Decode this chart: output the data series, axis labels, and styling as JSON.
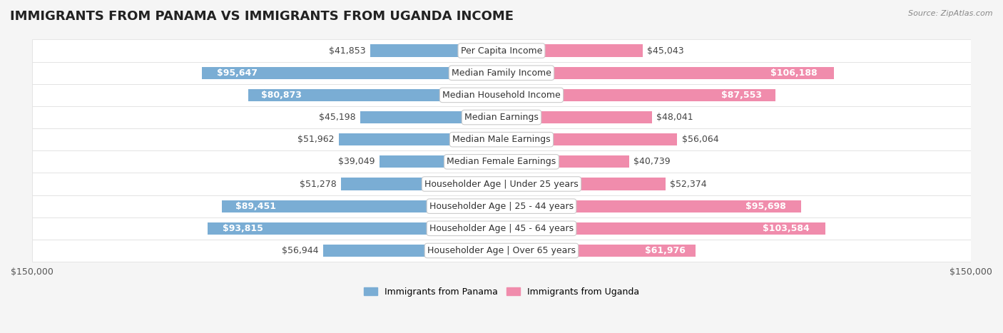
{
  "title": "IMMIGRANTS FROM PANAMA VS IMMIGRANTS FROM UGANDA INCOME",
  "source": "Source: ZipAtlas.com",
  "categories": [
    "Per Capita Income",
    "Median Family Income",
    "Median Household Income",
    "Median Earnings",
    "Median Male Earnings",
    "Median Female Earnings",
    "Householder Age | Under 25 years",
    "Householder Age | 25 - 44 years",
    "Householder Age | 45 - 64 years",
    "Householder Age | Over 65 years"
  ],
  "panama_values": [
    41853,
    95647,
    80873,
    45198,
    51962,
    39049,
    51278,
    89451,
    93815,
    56944
  ],
  "uganda_values": [
    45043,
    106188,
    87553,
    48041,
    56064,
    40739,
    52374,
    95698,
    103584,
    61976
  ],
  "panama_labels": [
    "$41,853",
    "$95,647",
    "$80,873",
    "$45,198",
    "$51,962",
    "$39,049",
    "$51,278",
    "$89,451",
    "$93,815",
    "$56,944"
  ],
  "uganda_labels": [
    "$45,043",
    "$106,188",
    "$87,553",
    "$48,041",
    "$56,064",
    "$40,739",
    "$52,374",
    "$95,698",
    "$103,584",
    "$61,976"
  ],
  "panama_color": "#7aadd4",
  "uganda_color": "#f08cac",
  "panama_color_dark": "#5b9bc8",
  "uganda_color_dark": "#e8638f",
  "panama_legend_color": "#7aadd4",
  "uganda_legend_color": "#f08cac",
  "bar_height": 0.55,
  "xlim": 150000,
  "background_color": "#f5f5f5",
  "row_bg_color": "#ffffff",
  "row_alt_color": "#f0f0f0",
  "label_fontsize": 9,
  "title_fontsize": 13,
  "legend_fontsize": 9,
  "source_fontsize": 8
}
